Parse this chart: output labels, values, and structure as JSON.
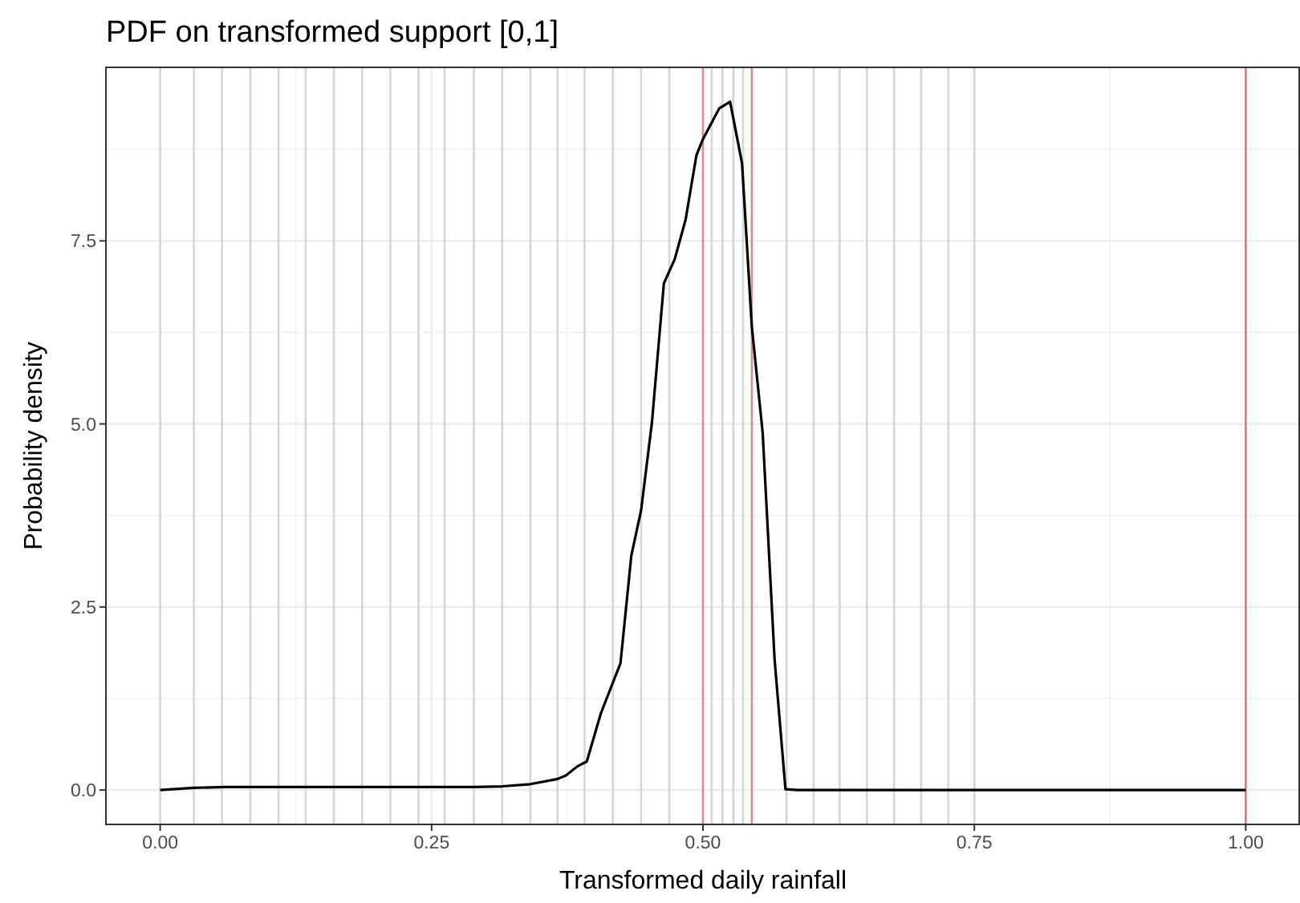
{
  "chart_data": {
    "type": "line",
    "title": "PDF on transformed support [0,1]",
    "xlabel": "Transformed daily rainfall",
    "ylabel": "Probability density",
    "x": [
      0,
      0.031,
      0.06,
      0.1,
      0.2,
      0.289,
      0.315,
      0.341,
      0.366,
      0.374,
      0.384,
      0.393,
      0.406,
      0.424,
      0.434,
      0.443,
      0.453,
      0.464,
      0.474,
      0.484,
      0.494,
      0.5,
      0.515,
      0.525,
      0.536,
      0.545,
      0.555,
      0.566,
      0.576,
      0.587,
      0.7,
      0.85,
      1.0
    ],
    "series": [
      {
        "color": "#000000",
        "values": [
          0,
          0.03,
          0.04,
          0.04,
          0.04,
          0.04,
          0.05,
          0.08,
          0.15,
          0.2,
          0.32,
          0.39,
          1.05,
          1.73,
          3.2,
          3.82,
          5.02,
          6.92,
          7.25,
          7.79,
          8.67,
          8.89,
          9.31,
          9.4,
          8.56,
          6.33,
          4.88,
          1.78,
          0.01,
          0,
          0,
          0,
          0
        ]
      }
    ],
    "xlim": [
      -0.05,
      1.05
    ],
    "ylim": [
      -0.47,
      9.87
    ],
    "xticks": [
      {
        "value": 0,
        "label": "0.00"
      },
      0.25,
      {
        "value": 0.5,
        "label": "0.50"
      },
      0.75,
      {
        "value": 1,
        "label": "1.00"
      }
    ],
    "yticks": [
      {
        "value": 0,
        "label": "0.0"
      },
      2.5,
      {
        "value": 5,
        "label": "5.0"
      },
      7.5
    ],
    "grid": true,
    "line_style": "solid",
    "marker": "none",
    "ref_lines": [
      {
        "axis": "x",
        "value": 0,
        "color": "#d6d6d6"
      },
      {
        "axis": "x",
        "value": 0.031,
        "color": "#d6d6d6"
      },
      {
        "axis": "x",
        "value": 0.057,
        "color": "#d6d6d6"
      },
      {
        "axis": "x",
        "value": 0.083,
        "color": "#d6d6d6"
      },
      {
        "axis": "x",
        "value": 0.109,
        "color": "#d6d6d6"
      },
      {
        "axis": "x",
        "value": 0.134,
        "color": "#d6d6d6"
      },
      {
        "axis": "x",
        "value": 0.16,
        "color": "#d6d6d6"
      },
      {
        "axis": "x",
        "value": 0.186,
        "color": "#d6d6d6"
      },
      {
        "axis": "x",
        "value": 0.212,
        "color": "#d6d6d6"
      },
      {
        "axis": "x",
        "value": 0.238,
        "color": "#d6d6d6"
      },
      {
        "axis": "x",
        "value": 0.262,
        "color": "#d6d6d6"
      },
      {
        "axis": "x",
        "value": 0.289,
        "color": "#d6d6d6"
      },
      {
        "axis": "x",
        "value": 0.315,
        "color": "#d6d6d6"
      },
      {
        "axis": "x",
        "value": 0.341,
        "color": "#d6d6d6"
      },
      {
        "axis": "x",
        "value": 0.366,
        "color": "#d6d6d6"
      },
      {
        "axis": "x",
        "value": 0.391,
        "color": "#d6d6d6"
      },
      {
        "axis": "x",
        "value": 0.417,
        "color": "#d6d6d6"
      },
      {
        "axis": "x",
        "value": 0.443,
        "color": "#d6d6d6"
      },
      {
        "axis": "x",
        "value": 0.469,
        "color": "#d6d6d6"
      },
      {
        "axis": "x",
        "value": 0.508,
        "color": "#d6d6d6"
      },
      {
        "axis": "x",
        "value": 0.518,
        "color": "#d6d6d6"
      },
      {
        "axis": "x",
        "value": 0.528,
        "color": "#d6d6d6"
      },
      {
        "axis": "x",
        "value": 0.537,
        "color": "#d6d6d6"
      },
      {
        "axis": "x",
        "value": 0.577,
        "color": "#d6d6d6"
      },
      {
        "axis": "x",
        "value": 0.602,
        "color": "#d6d6d6"
      },
      {
        "axis": "x",
        "value": 0.626,
        "color": "#d6d6d6"
      },
      {
        "axis": "x",
        "value": 0.651,
        "color": "#d6d6d6"
      },
      {
        "axis": "x",
        "value": 0.676,
        "color": "#d6d6d6"
      },
      {
        "axis": "x",
        "value": 0.701,
        "color": "#d6d6d6"
      },
      {
        "axis": "x",
        "value": 0.726,
        "color": "#d6d6d6"
      },
      {
        "axis": "x",
        "value": 0.75,
        "color": "#d6d6d6"
      },
      {
        "axis": "x",
        "value": 0.5,
        "color": "#e08a8a"
      },
      {
        "axis": "x",
        "value": 0.545,
        "color": "#e08a8a"
      },
      {
        "axis": "x",
        "value": 1,
        "color": "#f07070"
      }
    ]
  }
}
